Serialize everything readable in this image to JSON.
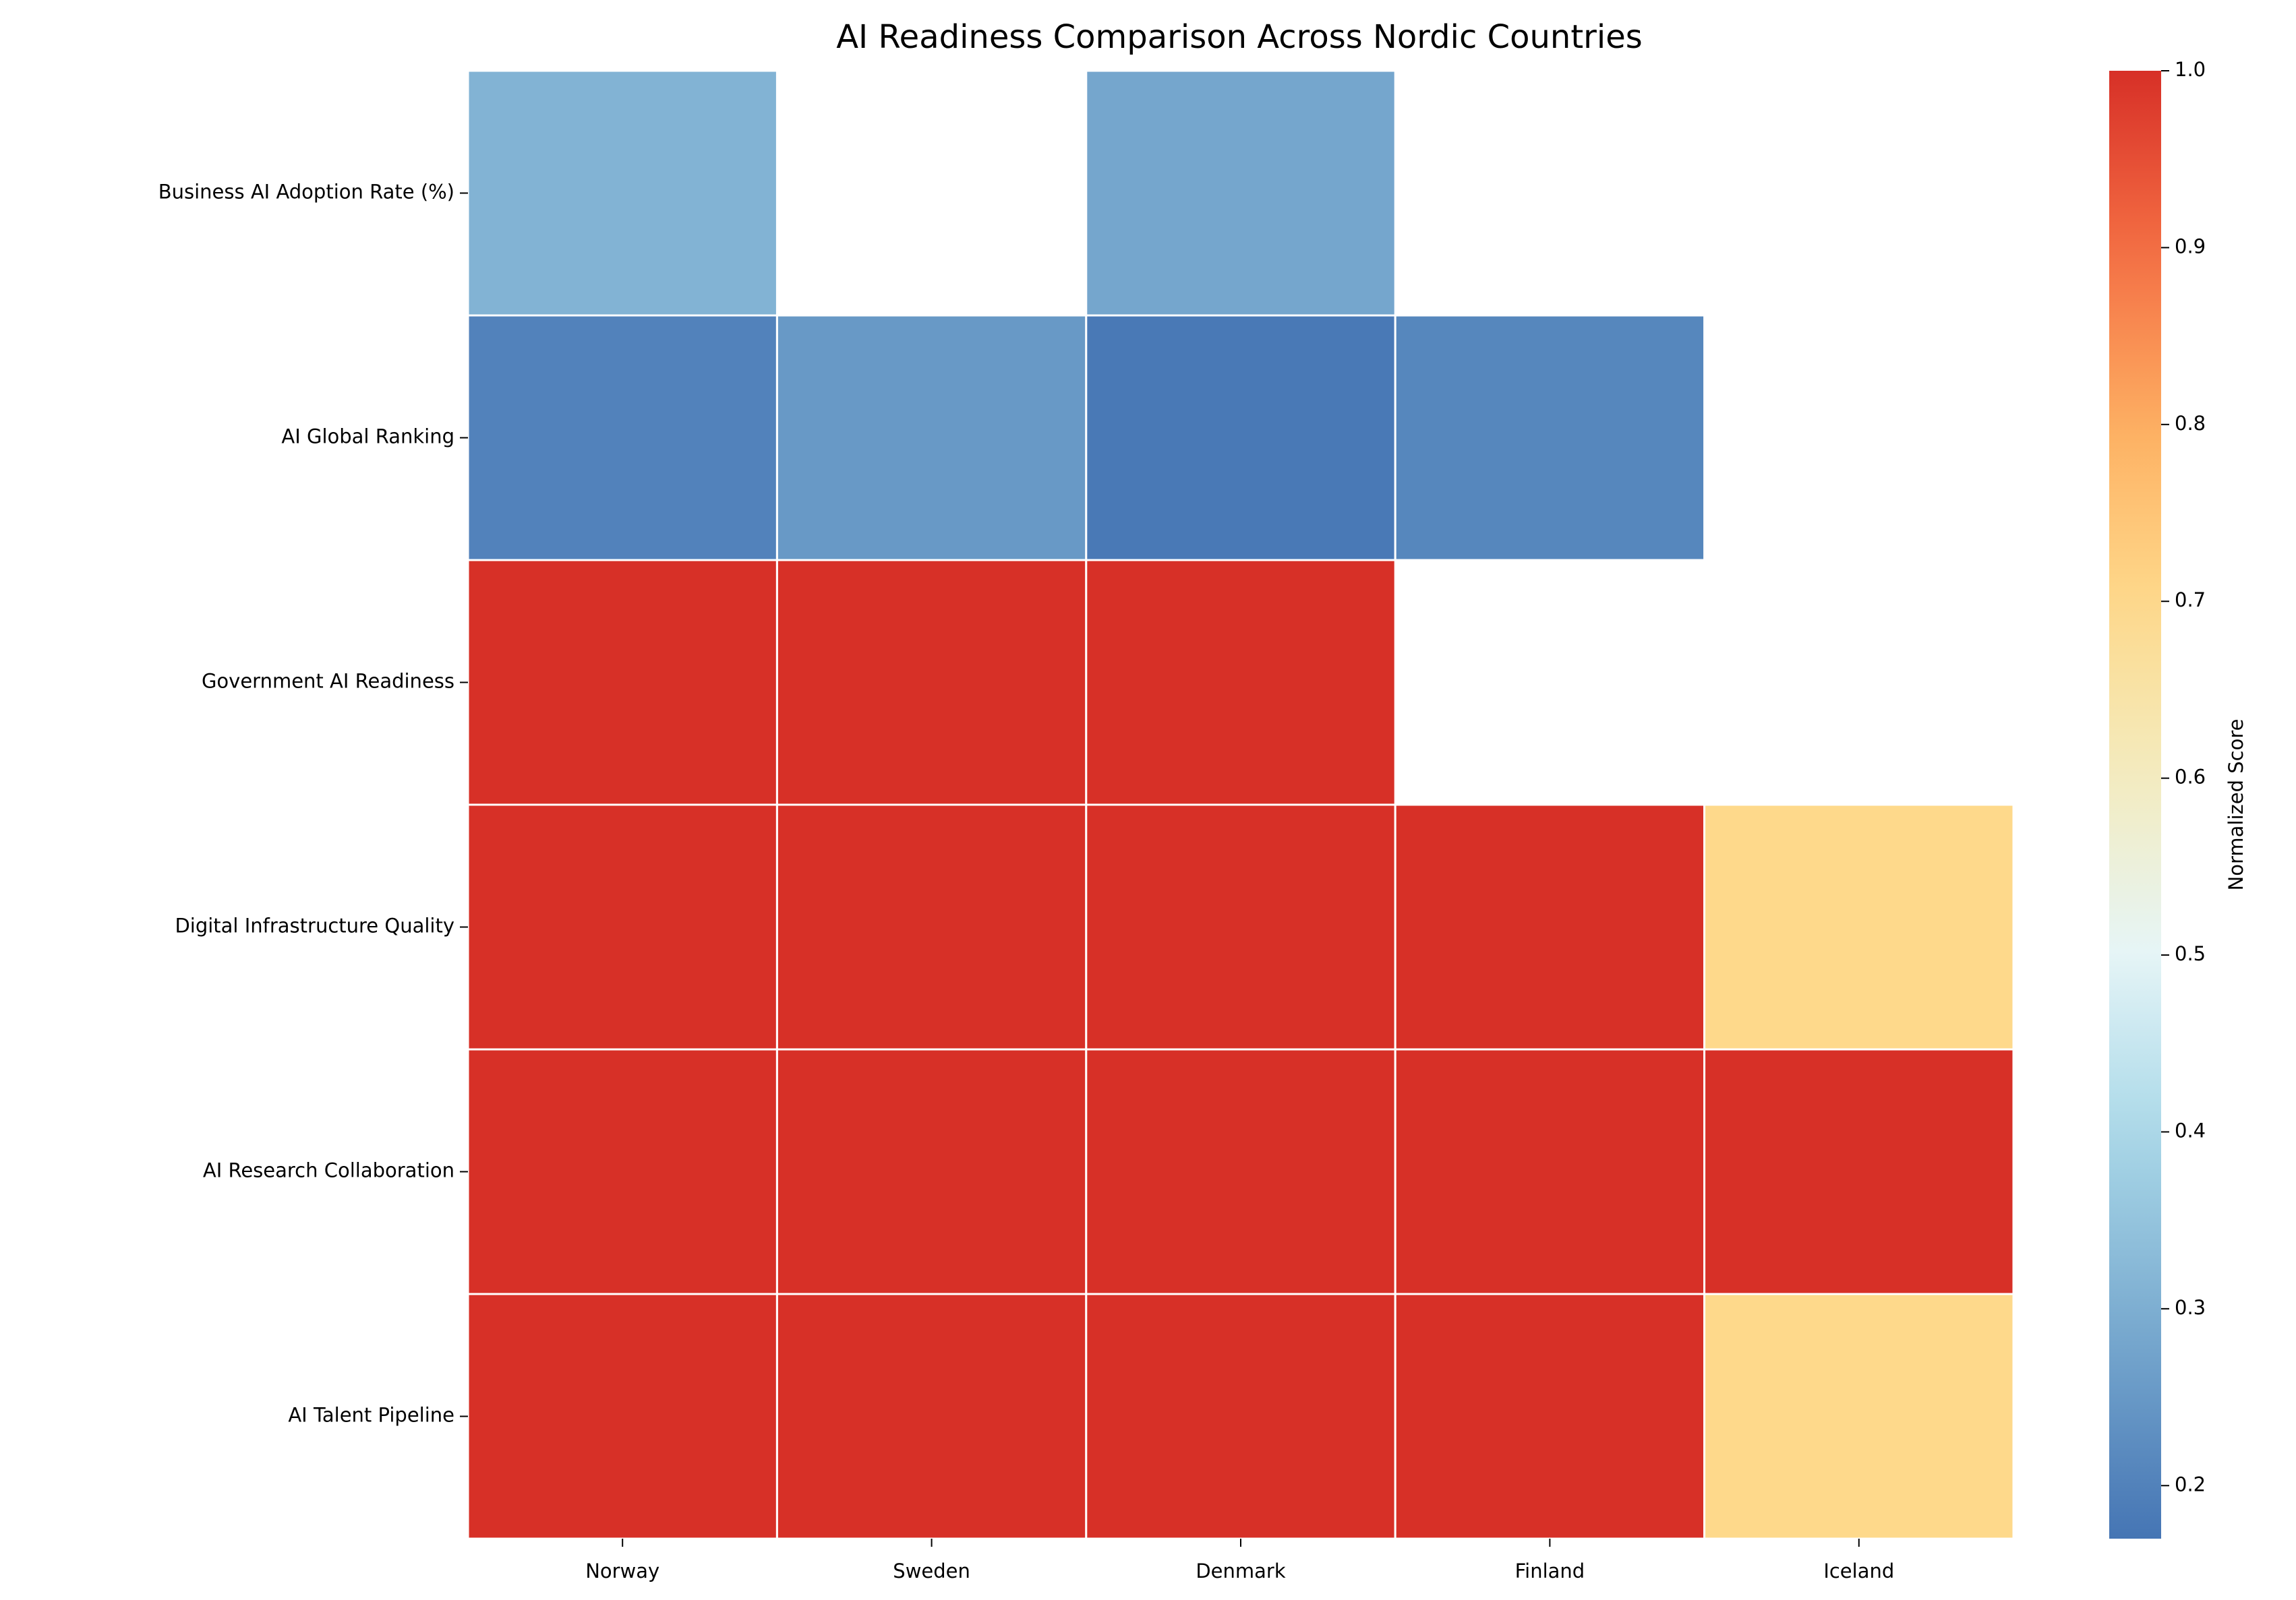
{
  "chart_data": {
    "type": "heatmap",
    "title": "AI Readiness Comparison Across Nordic Countries",
    "columns": [
      "Norway",
      "Sweden",
      "Denmark",
      "Finland",
      "Iceland"
    ],
    "rows": [
      "Business AI Adoption Rate (%)",
      "AI Global Ranking",
      "Government AI Readiness",
      "Digital Infrastructure Quality",
      "AI Research Collaboration",
      "AI Talent Pipeline"
    ],
    "values": [
      [
        0.31,
        null,
        0.28,
        null,
        null
      ],
      [
        0.2,
        0.25,
        0.18,
        0.21,
        null
      ],
      [
        1,
        1,
        1,
        null,
        null
      ],
      [
        1,
        1,
        1,
        1,
        0.7
      ],
      [
        1,
        1,
        1,
        1,
        1
      ],
      [
        1,
        1,
        1,
        1,
        0.7
      ]
    ],
    "colorbar_label": "Normalized Score",
    "clim": [
      0.17,
      1
    ],
    "cticks": [
      0.2,
      0.3,
      0.4,
      0.5,
      0.6,
      0.7,
      0.8,
      0.9,
      {
        "value": 1,
        "label": "1.0"
      }
    ]
  }
}
